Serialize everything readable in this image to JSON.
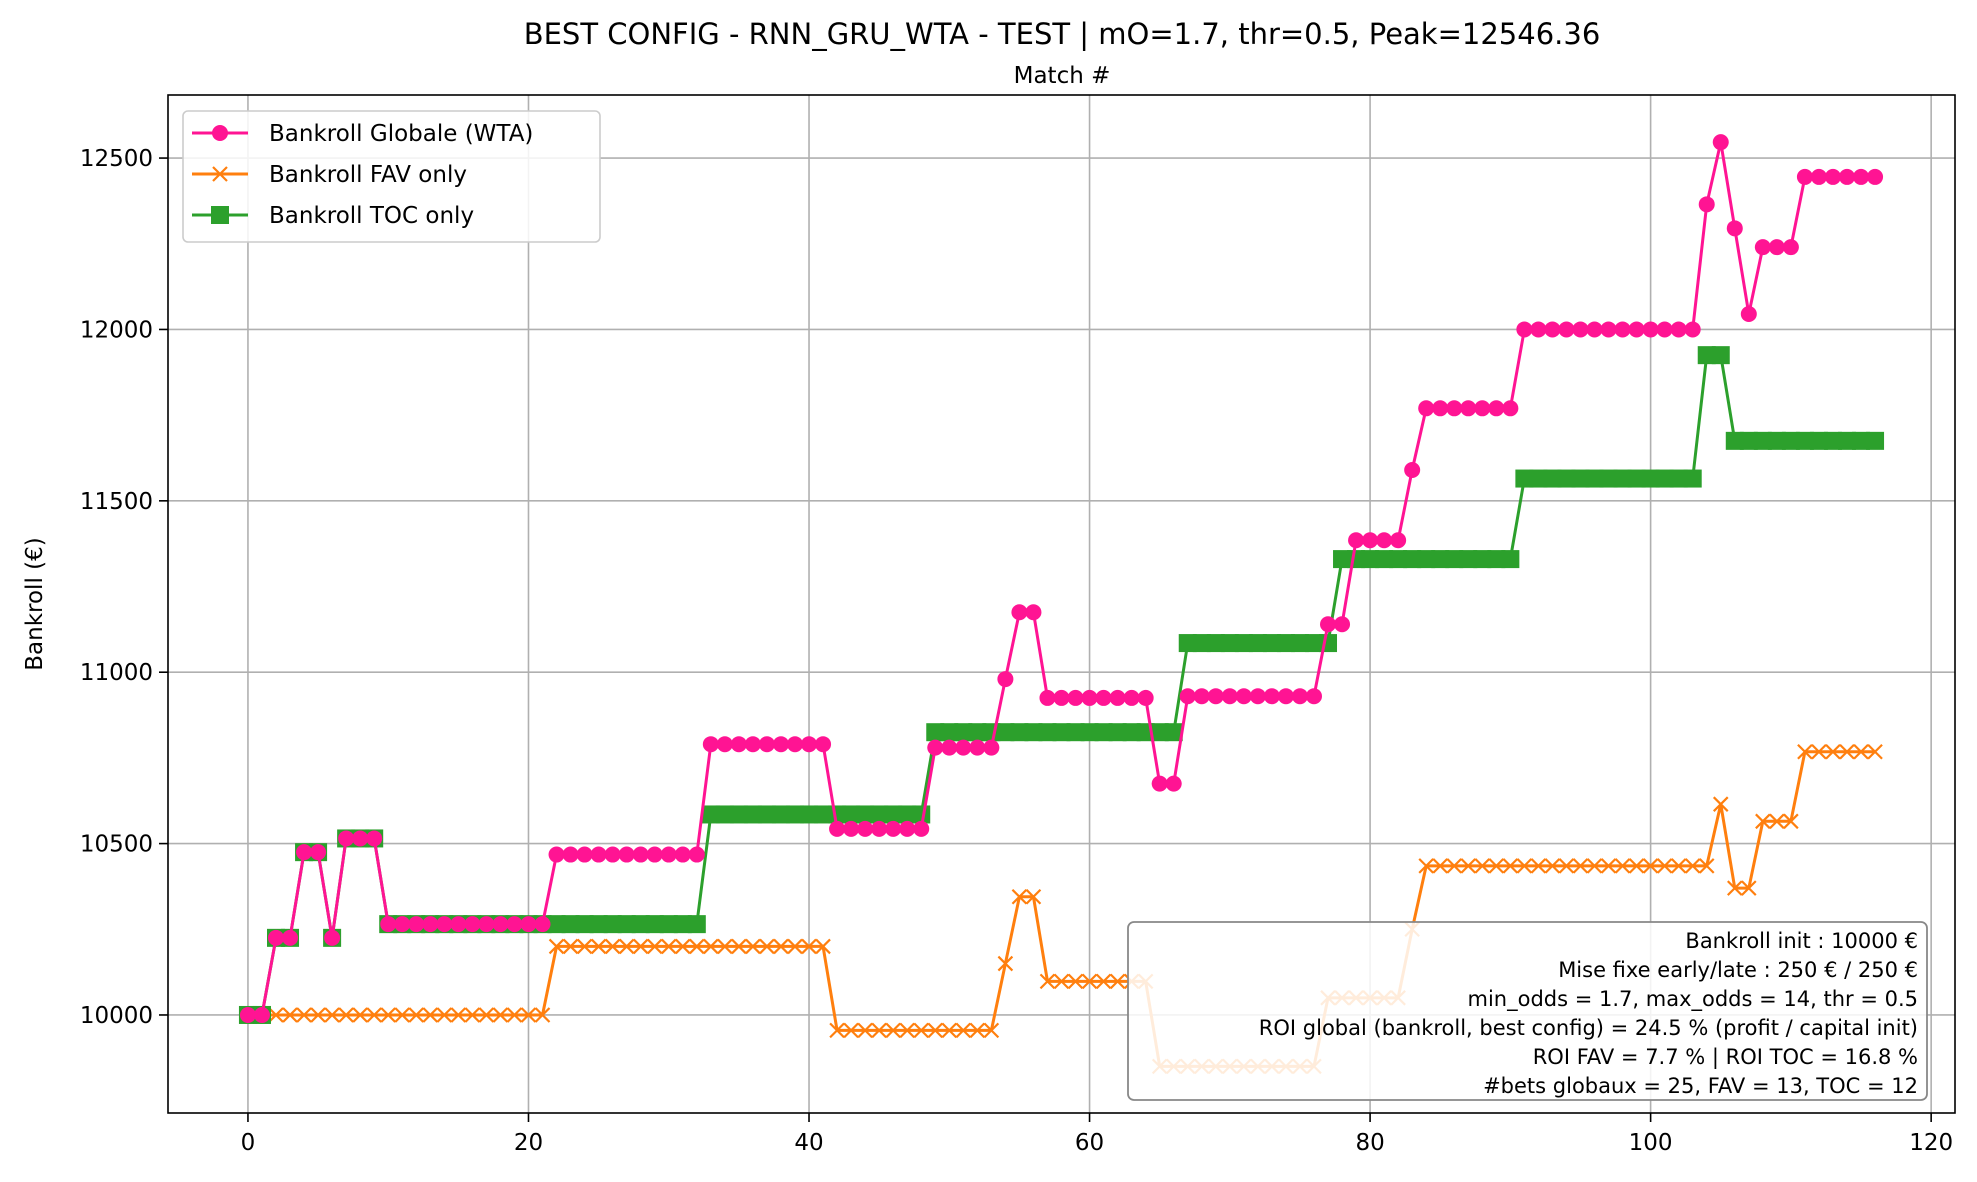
{
  "chart_data": {
    "type": "line",
    "title": "BEST CONFIG - RNN_GRU_WTA - TEST | mO=1.7, thr=0.5, Peak=12546.36",
    "xlabel": "Match #",
    "ylabel": "Bankroll (€)",
    "xlim": [
      -5.7,
      121.7
    ],
    "ylim": [
      9714,
      12684
    ],
    "xticks": [
      0,
      20,
      40,
      60,
      80,
      100,
      120
    ],
    "yticks": [
      10000,
      10500,
      11000,
      11500,
      12000,
      12500
    ],
    "grid": true,
    "legend_position": "top-left",
    "series": [
      {
        "name": "Bankroll Globale (WTA)",
        "color": "#ff1493",
        "marker": "circle",
        "segments": [
          [
            0,
            1,
            10000
          ],
          [
            2,
            3,
            10225
          ],
          [
            4,
            5,
            10475
          ],
          [
            6,
            6,
            10225
          ],
          [
            7,
            9,
            10515
          ],
          [
            10,
            21,
            10265
          ],
          [
            22,
            32,
            10468
          ],
          [
            33,
            41,
            10790
          ],
          [
            42,
            48,
            10543
          ],
          [
            49,
            53,
            10780
          ],
          [
            54,
            54,
            10980
          ],
          [
            55,
            56,
            11175
          ],
          [
            57,
            64,
            10925
          ],
          [
            65,
            66,
            10675
          ],
          [
            67,
            76,
            10930
          ],
          [
            77,
            78,
            11140
          ],
          [
            79,
            82,
            11385
          ],
          [
            83,
            83,
            11590
          ],
          [
            84,
            90,
            11770
          ],
          [
            91,
            103,
            12000
          ],
          [
            104,
            104,
            12365
          ],
          [
            105,
            105,
            12546.36
          ],
          [
            106,
            106,
            12295
          ],
          [
            107,
            107,
            12045
          ],
          [
            108,
            110,
            12240
          ],
          [
            111,
            116,
            12445
          ]
        ]
      },
      {
        "name": "Bankroll FAV only",
        "color": "#ff7f0e",
        "marker": "x",
        "segments": [
          [
            0,
            21,
            10000
          ],
          [
            22,
            41,
            10200
          ],
          [
            42,
            53,
            9955
          ],
          [
            54,
            54,
            10150
          ],
          [
            55,
            56,
            10345
          ],
          [
            57,
            64,
            10098
          ],
          [
            65,
            76,
            9850
          ],
          [
            77,
            82,
            10050
          ],
          [
            83,
            83,
            10250
          ],
          [
            84,
            104,
            10435
          ],
          [
            105,
            105,
            10615
          ],
          [
            106,
            107,
            10370
          ],
          [
            108,
            110,
            10565
          ],
          [
            111,
            116,
            10768
          ]
        ]
      },
      {
        "name": "Bankroll TOC only",
        "color": "#2ca02c",
        "marker": "square",
        "segments": [
          [
            0,
            1,
            10000
          ],
          [
            2,
            3,
            10225
          ],
          [
            4,
            5,
            10475
          ],
          [
            6,
            6,
            10225
          ],
          [
            7,
            9,
            10515
          ],
          [
            10,
            32,
            10265
          ],
          [
            33,
            48,
            10585
          ],
          [
            49,
            66,
            10825
          ],
          [
            67,
            77,
            11085
          ],
          [
            78,
            90,
            11330
          ],
          [
            91,
            103,
            11565
          ],
          [
            104,
            105,
            11925
          ],
          [
            106,
            116,
            11675
          ]
        ]
      }
    ],
    "annotation": [
      "Bankroll init : 10000 €",
      "Mise fixe early/late : 250 € / 250 €",
      "min_odds = 1.7, max_odds = 14, thr = 0.5",
      "ROI global (bankroll, best config) = 24.5 % (profit / capital init)",
      "ROI FAV = 7.7 % | ROI TOC = 16.8 %",
      "#bets globaux = 25, FAV = 13, TOC = 12"
    ]
  }
}
